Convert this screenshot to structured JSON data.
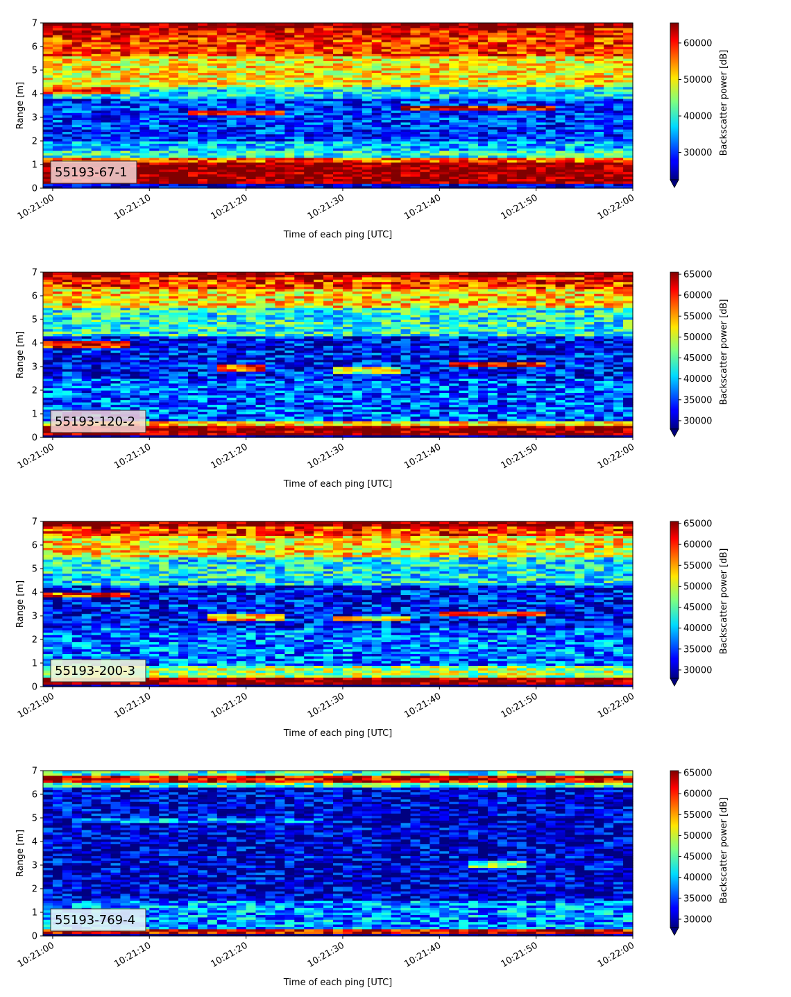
{
  "figure": {
    "xlabel": "Time of each ping [UTC]",
    "ylabel": "Range [m]",
    "colorbar_label": "Backscatter power [dB]"
  },
  "chart_data": [
    {
      "type": "heatmap",
      "annotation": "55193-67-1",
      "xlabel": "Time of each ping [UTC]",
      "ylabel": "Range [m]",
      "x_ticks": [
        "10:21:00",
        "10:21:10",
        "10:21:20",
        "10:21:30",
        "10:21:40",
        "10:21:50",
        "10:22:00"
      ],
      "xlim": [
        "10:20:59",
        "10:22:00"
      ],
      "ylim": [
        0,
        7
      ],
      "y_ticks": [
        0,
        1,
        2,
        3,
        4,
        5,
        6,
        7
      ],
      "colormap": "jet",
      "colorbar": {
        "label": "Backscatter power [dB]",
        "range": [
          22500,
          65500
        ],
        "ticks": [
          30000,
          40000,
          50000,
          60000
        ],
        "extend": "min"
      },
      "field": {
        "bands": [
          {
            "range": [
              0.2,
              1.1
            ],
            "value": 65500
          },
          {
            "range": [
              1.1,
              1.3
            ],
            "value": 57000
          },
          {
            "range": [
              1.3,
              1.6
            ],
            "value": 40000
          },
          {
            "range": [
              1.6,
              2.0
            ],
            "value": 36000
          },
          {
            "range": [
              2.0,
              3.8
            ],
            "value": 30000
          },
          {
            "range": [
              3.8,
              4.3
            ],
            "value": 38000
          },
          {
            "range": [
              4.3,
              5.6
            ],
            "value": 50000
          },
          {
            "range": [
              5.6,
              6.4
            ],
            "value": 58000
          },
          {
            "range": [
              6.4,
              6.8
            ],
            "value": 60000
          },
          {
            "range": [
              6.8,
              7.0
            ],
            "value": 65500
          }
        ],
        "features": [
          {
            "time": [
              "10:21:14",
              "10:21:24"
            ],
            "range": 3.2,
            "value": 60000
          },
          {
            "time": [
              "10:21:36",
              "10:21:52"
            ],
            "range": 3.4,
            "value": 60000
          },
          {
            "time": [
              "10:20:59",
              "10:21:08"
            ],
            "range": 4.15,
            "value": 58000
          }
        ]
      }
    },
    {
      "type": "heatmap",
      "annotation": "55193-120-2",
      "xlabel": "Time of each ping [UTC]",
      "ylabel": "Range [m]",
      "x_ticks": [
        "10:21:00",
        "10:21:10",
        "10:21:20",
        "10:21:30",
        "10:21:40",
        "10:21:50",
        "10:22:00"
      ],
      "xlim": [
        "10:20:59",
        "10:22:00"
      ],
      "ylim": [
        0,
        7
      ],
      "y_ticks": [
        0,
        1,
        2,
        3,
        4,
        5,
        6,
        7
      ],
      "colormap": "jet",
      "colorbar": {
        "label": "Backscatter power [dB]",
        "range": [
          28000,
          65500
        ],
        "ticks": [
          30000,
          35000,
          40000,
          45000,
          50000,
          55000,
          60000,
          65000
        ],
        "extend": "min"
      },
      "field": {
        "bands": [
          {
            "range": [
              0.1,
              0.55
            ],
            "value": 65500
          },
          {
            "range": [
              0.55,
              0.75
            ],
            "value": 52000
          },
          {
            "range": [
              0.75,
              2.5
            ],
            "value": 36000
          },
          {
            "range": [
              2.5,
              4.3
            ],
            "value": 33000
          },
          {
            "range": [
              4.3,
              5.5
            ],
            "value": 43000
          },
          {
            "range": [
              5.5,
              6.3
            ],
            "value": 53000
          },
          {
            "range": [
              6.3,
              6.8
            ],
            "value": 59000
          },
          {
            "range": [
              6.8,
              7.0
            ],
            "value": 65500
          }
        ],
        "features": [
          {
            "time": [
              "10:21:17",
              "10:21:22"
            ],
            "range": 2.95,
            "value": 58000
          },
          {
            "time": [
              "10:21:29",
              "10:21:36"
            ],
            "range": 2.85,
            "value": 50000
          },
          {
            "time": [
              "10:21:41",
              "10:21:51"
            ],
            "range": 3.1,
            "value": 62000
          },
          {
            "time": [
              "10:20:59",
              "10:21:08"
            ],
            "range": 3.95,
            "value": 60000
          }
        ]
      }
    },
    {
      "type": "heatmap",
      "annotation": "55193-200-3",
      "xlabel": "Time of each ping [UTC]",
      "ylabel": "Range [m]",
      "x_ticks": [
        "10:21:00",
        "10:21:10",
        "10:21:20",
        "10:21:30",
        "10:21:40",
        "10:21:50",
        "10:22:00"
      ],
      "xlim": [
        "10:20:59",
        "10:22:00"
      ],
      "ylim": [
        0,
        7
      ],
      "y_ticks": [
        0,
        1,
        2,
        3,
        4,
        5,
        6,
        7
      ],
      "colormap": "jet",
      "colorbar": {
        "label": "Backscatter power [dB]",
        "range": [
          28000,
          65500
        ],
        "ticks": [
          30000,
          35000,
          40000,
          45000,
          50000,
          55000,
          60000,
          65000
        ],
        "extend": "min"
      },
      "field": {
        "bands": [
          {
            "range": [
              0.1,
              0.45
            ],
            "value": 65500
          },
          {
            "range": [
              0.45,
              0.9
            ],
            "value": 48000
          },
          {
            "range": [
              0.9,
              2.5
            ],
            "value": 37000
          },
          {
            "range": [
              2.5,
              4.3
            ],
            "value": 33000
          },
          {
            "range": [
              4.3,
              5.5
            ],
            "value": 42000
          },
          {
            "range": [
              5.5,
              6.4
            ],
            "value": 52000
          },
          {
            "range": [
              6.4,
              6.8
            ],
            "value": 59000
          },
          {
            "range": [
              6.8,
              7.0
            ],
            "value": 65500
          }
        ],
        "features": [
          {
            "time": [
              "10:21:16",
              "10:21:24"
            ],
            "range": 2.95,
            "value": 54000
          },
          {
            "time": [
              "10:21:29",
              "10:21:37"
            ],
            "range": 2.9,
            "value": 52000
          },
          {
            "time": [
              "10:21:40",
              "10:21:51"
            ],
            "range": 3.1,
            "value": 60000
          },
          {
            "time": [
              "10:20:59",
              "10:21:08"
            ],
            "range": 3.9,
            "value": 58000
          }
        ]
      }
    },
    {
      "type": "heatmap",
      "annotation": "55193-769-4",
      "xlabel": "Time of each ping [UTC]",
      "ylabel": "Range [m]",
      "x_ticks": [
        "10:21:00",
        "10:21:10",
        "10:21:20",
        "10:21:30",
        "10:21:40",
        "10:21:50",
        "10:22:00"
      ],
      "xlim": [
        "10:20:59",
        "10:22:00"
      ],
      "ylim": [
        0,
        7
      ],
      "y_ticks": [
        0,
        1,
        2,
        3,
        4,
        5,
        6,
        7
      ],
      "colormap": "jet",
      "colorbar": {
        "label": "Backscatter power [dB]",
        "range": [
          28000,
          65500
        ],
        "ticks": [
          30000,
          35000,
          40000,
          45000,
          50000,
          55000,
          60000,
          65000
        ],
        "extend": "min"
      },
      "field": {
        "bands": [
          {
            "range": [
              0.1,
              0.35
            ],
            "value": 62000
          },
          {
            "range": [
              0.35,
              1.5
            ],
            "value": 38000
          },
          {
            "range": [
              1.5,
              6.3
            ],
            "value": 31000
          },
          {
            "range": [
              6.3,
              6.55
            ],
            "value": 45000
          },
          {
            "range": [
              6.55,
              6.8
            ],
            "value": 62000
          },
          {
            "range": [
              6.8,
              7.0
            ],
            "value": 44000
          }
        ],
        "features": [
          {
            "time": [
              "10:21:43",
              "10:21:49"
            ],
            "range": 3.05,
            "value": 45000
          },
          {
            "time": [
              "10:21:02",
              "10:21:28"
            ],
            "range": 4.9,
            "value": 38000
          }
        ]
      }
    }
  ]
}
